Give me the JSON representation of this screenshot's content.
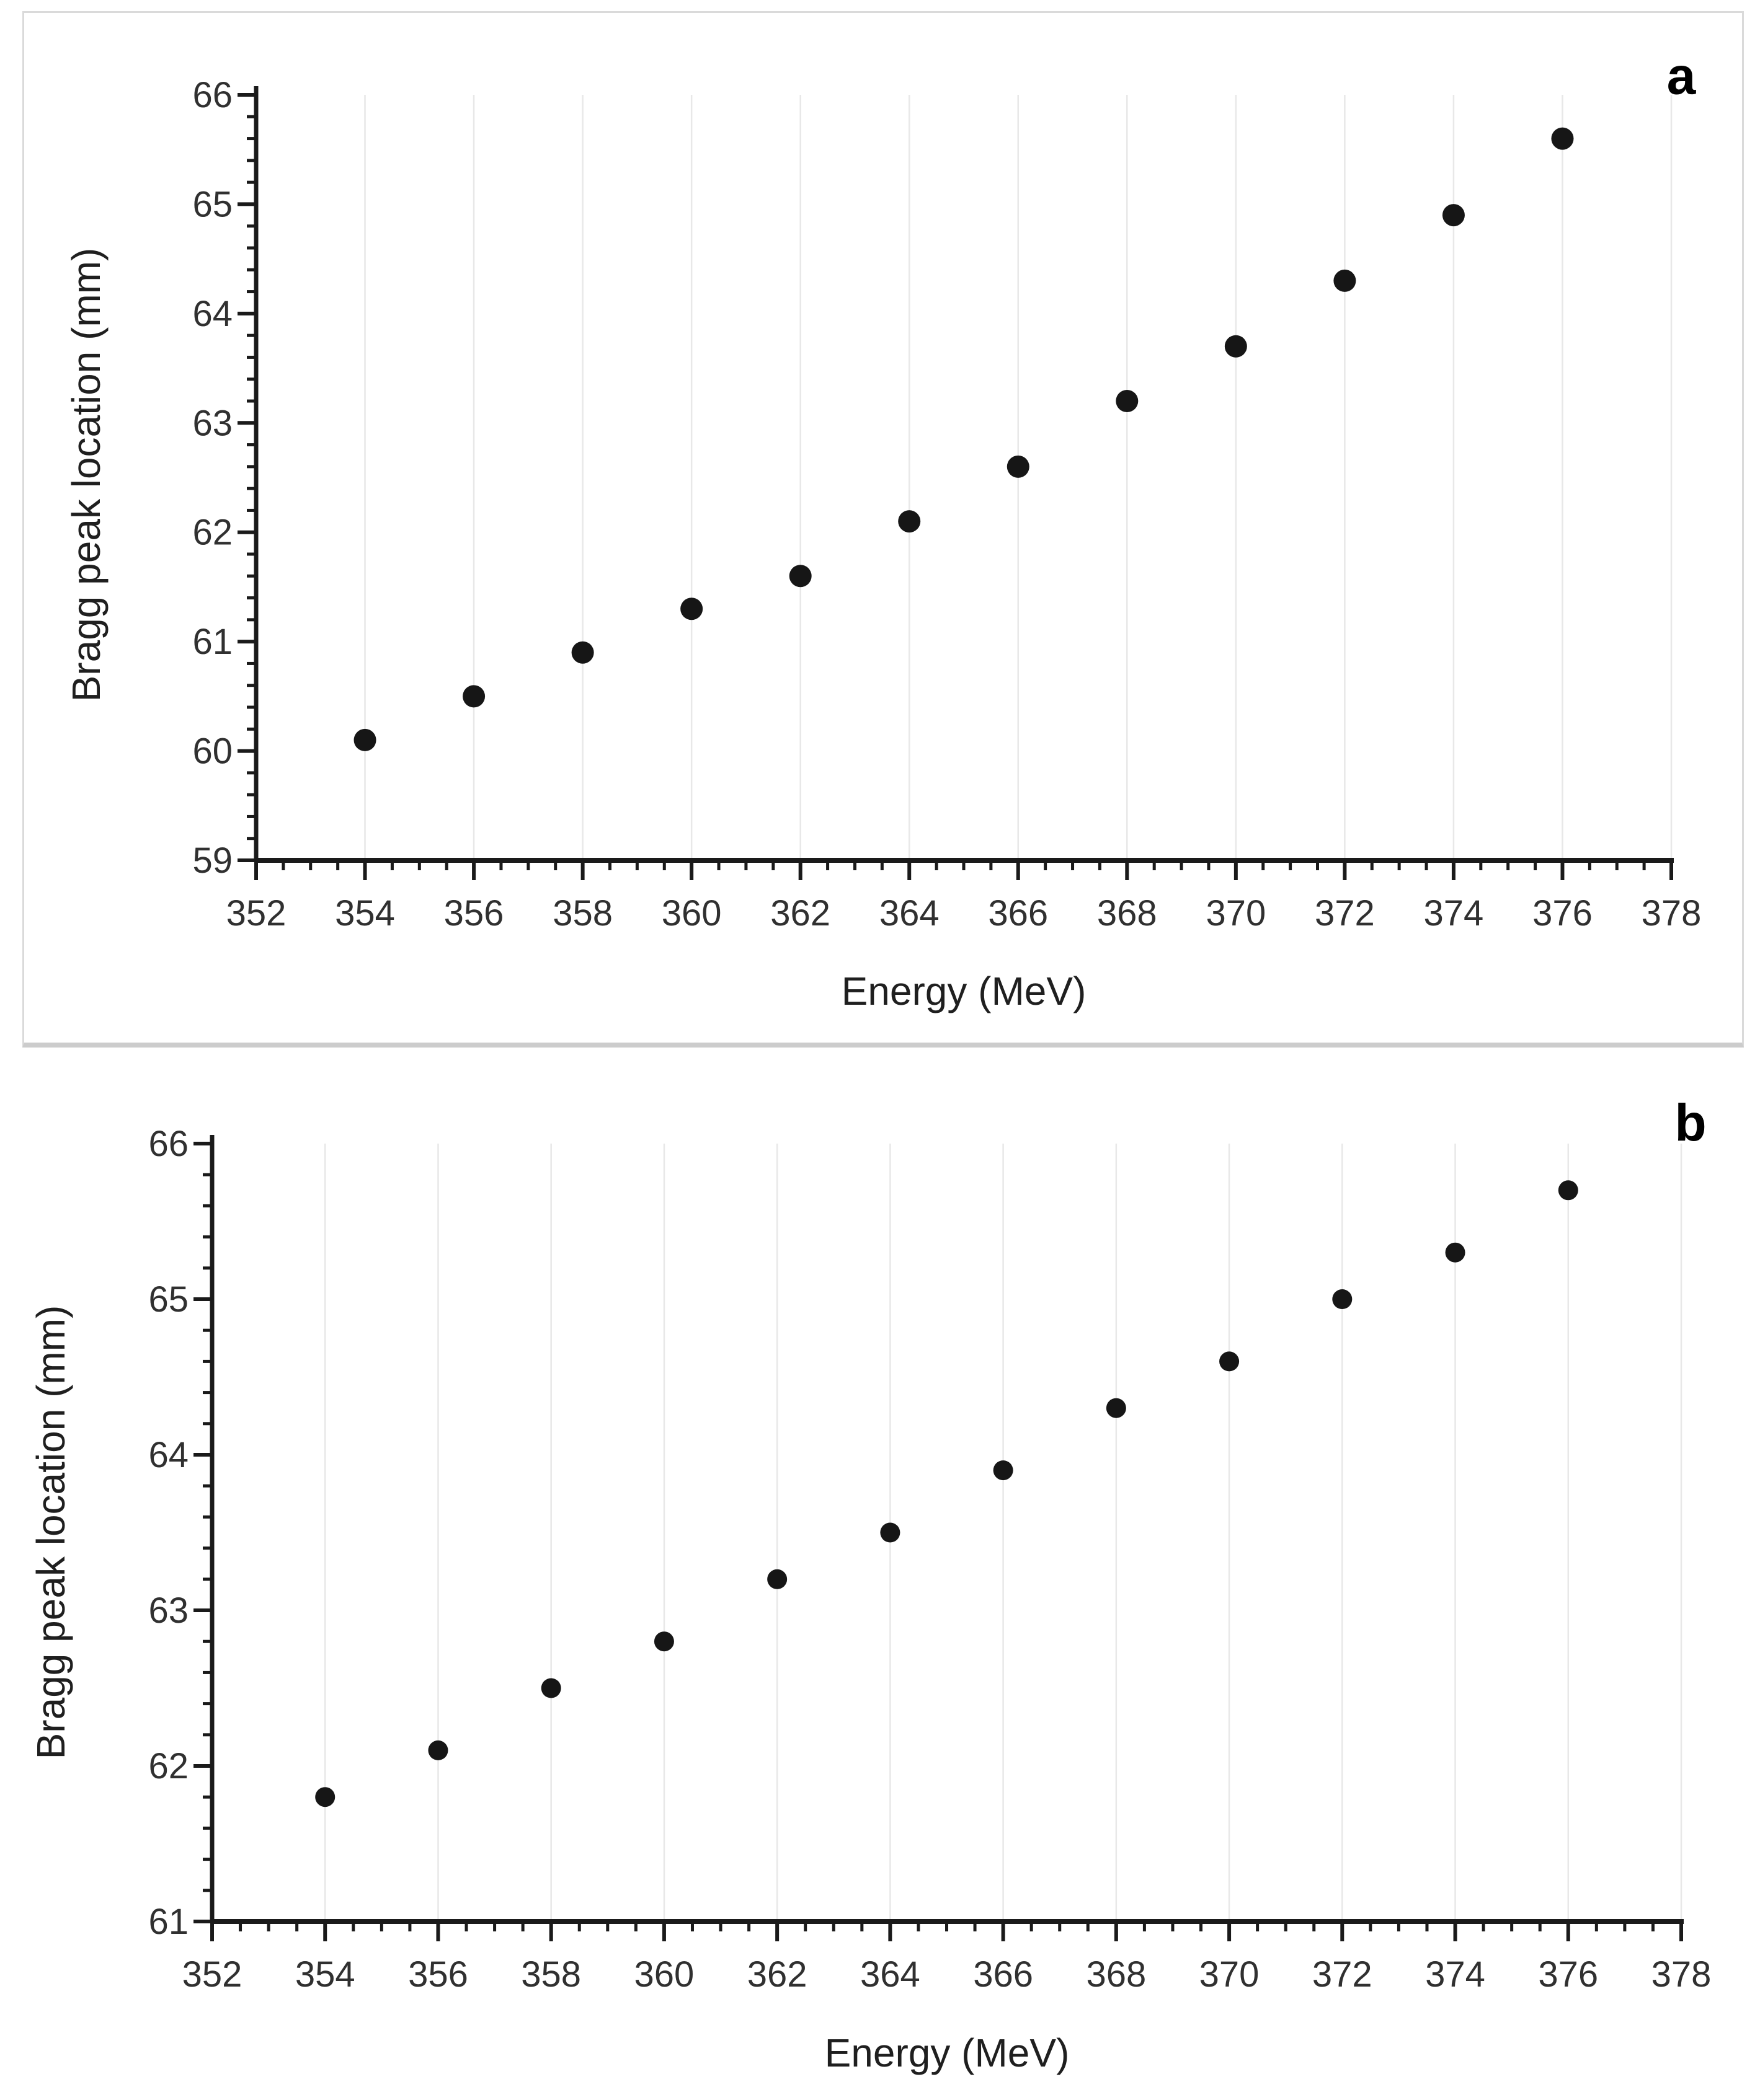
{
  "figure": {
    "background": "#ffffff",
    "description": "Two-panel scatter figure of Bragg peak location versus proton energy"
  },
  "style": {
    "marker_color": "#161616",
    "grid_color": "#e8e8e8",
    "axis_color": "#1a1a1a",
    "tick_color": "#1a1a1a",
    "tick_label_color": "#303030",
    "title_color": "#1f1f1f",
    "frame_color": "#dadada",
    "background": "#ffffff"
  },
  "chart_data": [
    {
      "type": "scatter",
      "panel_label": "a",
      "xlabel": "Energy (MeV)",
      "ylabel": "Bragg peak location (mm)",
      "x": [
        354,
        356,
        358,
        360,
        362,
        364,
        366,
        368,
        370,
        372,
        374,
        376
      ],
      "y": [
        60.1,
        60.5,
        60.9,
        61.3,
        61.6,
        62.1,
        62.6,
        63.2,
        63.7,
        64.3,
        64.9,
        65.6
      ],
      "xlim": [
        352,
        378
      ],
      "ylim": [
        59,
        66
      ],
      "x_tick_labels": [
        "352",
        "354",
        "356",
        "358",
        "360",
        "362",
        "364",
        "366",
        "368",
        "370",
        "372",
        "374",
        "376",
        "378"
      ],
      "y_tick_labels": [
        "59",
        "60",
        "61",
        "62",
        "63",
        "64",
        "65",
        "66"
      ],
      "x_major_step": 2,
      "x_minor_step": 0.5,
      "y_major_step": 1,
      "y_minor_step": 0.2,
      "grid": "vertical-at-major-ticks",
      "legend": "none",
      "framed": true,
      "marker": {
        "shape": "circle",
        "radius_px": 18
      }
    },
    {
      "type": "scatter",
      "panel_label": "b",
      "xlabel": "Energy (MeV)",
      "ylabel": "Bragg peak location (mm)",
      "x": [
        354,
        356,
        358,
        360,
        362,
        364,
        366,
        368,
        370,
        372,
        374,
        376
      ],
      "y": [
        61.8,
        62.1,
        62.5,
        62.8,
        63.2,
        63.5,
        63.9,
        64.3,
        64.6,
        65.0,
        65.3,
        65.7
      ],
      "xlim": [
        352,
        378
      ],
      "ylim": [
        61,
        66
      ],
      "x_tick_labels": [
        "352",
        "354",
        "356",
        "358",
        "360",
        "362",
        "364",
        "366",
        "368",
        "370",
        "372",
        "374",
        "376",
        "378"
      ],
      "y_tick_labels": [
        "61",
        "62",
        "63",
        "64",
        "65",
        "66"
      ],
      "x_major_step": 2,
      "x_minor_step": 0.5,
      "y_major_step": 1,
      "y_minor_step": 0.2,
      "grid": "vertical-at-major-ticks",
      "legend": "none",
      "framed": false,
      "marker": {
        "shape": "circle",
        "radius_px": 16
      }
    }
  ]
}
